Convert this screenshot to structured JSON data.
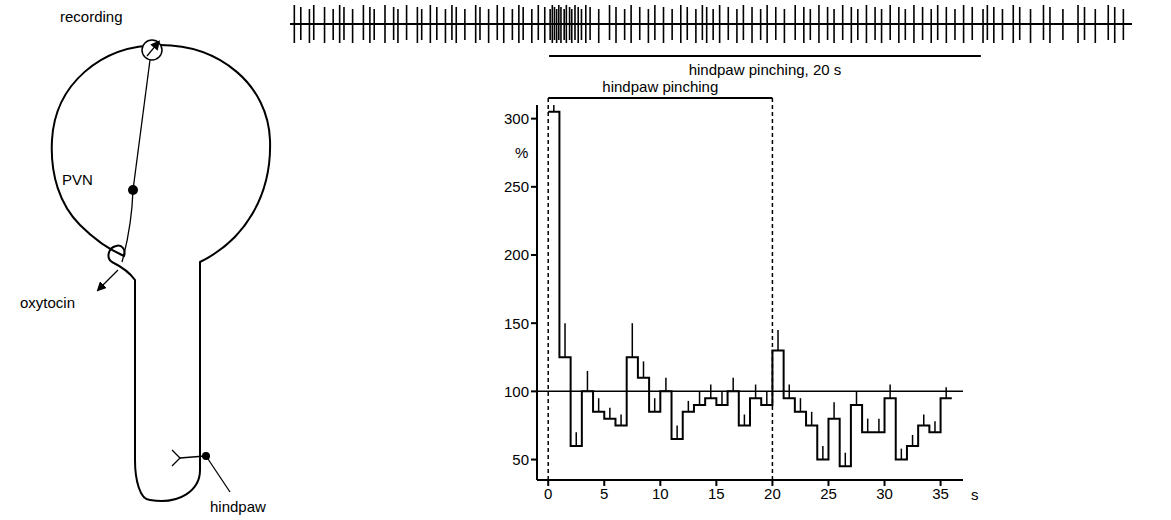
{
  "diagram": {
    "labels": {
      "recording": "recording",
      "pvn": "PVN",
      "oxytocin": "oxytocin",
      "hindpaw": "hindpaw"
    }
  },
  "trace": {
    "type": "spike_train",
    "xlim": [
      -12,
      27
    ],
    "spike_times": [
      -11.8,
      -11.5,
      -11.1,
      -10.9,
      -10.4,
      -10.0,
      -9.7,
      -9.5,
      -9.1,
      -8.6,
      -8.3,
      -8.1,
      -7.6,
      -7.2,
      -7.0,
      -6.6,
      -6.1,
      -5.9,
      -5.5,
      -5.2,
      -4.8,
      -4.5,
      -4.3,
      -3.9,
      -3.4,
      -3.2,
      -2.8,
      -2.4,
      -2.1,
      -1.7,
      -1.4,
      -1.2,
      -0.8,
      -0.5,
      -0.2,
      0.05,
      0.15,
      0.25,
      0.35,
      0.45,
      0.55,
      0.7,
      0.8,
      0.95,
      1.05,
      1.2,
      1.35,
      1.5,
      1.7,
      1.9,
      2.3,
      2.8,
      3.1,
      3.5,
      3.8,
      4.2,
      4.6,
      4.9,
      5.3,
      5.7,
      6.1,
      6.4,
      6.8,
      7.1,
      7.3,
      7.6,
      7.9,
      8.3,
      8.7,
      9.0,
      9.4,
      9.8,
      10.1,
      10.5,
      10.9,
      11.4,
      11.8,
      12.1,
      12.5,
      12.9,
      13.2,
      13.6,
      14.0,
      14.3,
      14.7,
      15.1,
      15.4,
      15.8,
      16.2,
      16.5,
      16.9,
      17.3,
      17.7,
      18.0,
      18.4,
      18.8,
      19.2,
      19.6,
      20.1,
      20.3,
      20.6,
      21.0,
      21.5,
      21.8,
      22.3,
      22.9,
      23.2,
      23.8,
      24.5,
      24.8,
      25.3,
      25.9,
      26.2,
      26.6
    ],
    "stimulus": {
      "label": "hindpaw pinching, 20 s",
      "start": 0,
      "end": 20
    }
  },
  "chart_data": {
    "type": "histogram",
    "bins": [
      0,
      1,
      2,
      3,
      4,
      5,
      6,
      7,
      8,
      9,
      10,
      11,
      12,
      13,
      14,
      15,
      16,
      17,
      18,
      19,
      20,
      21,
      22,
      23,
      24,
      25,
      26,
      27,
      28,
      29,
      30,
      31,
      32,
      33,
      34,
      35,
      36
    ],
    "values": [
      305,
      125,
      60,
      100,
      85,
      80,
      75,
      125,
      110,
      85,
      100,
      65,
      85,
      90,
      95,
      90,
      100,
      75,
      95,
      90,
      130,
      95,
      85,
      75,
      50,
      80,
      45,
      90,
      70,
      70,
      95,
      50,
      60,
      75,
      70,
      95
    ],
    "errors": [
      5,
      25,
      10,
      15,
      10,
      8,
      8,
      25,
      12,
      10,
      10,
      10,
      8,
      10,
      10,
      10,
      10,
      8,
      10,
      10,
      15,
      10,
      10,
      10,
      10,
      12,
      10,
      10,
      10,
      10,
      10,
      8,
      8,
      8,
      8,
      8
    ],
    "y_label": "%",
    "x_label": "s",
    "xlim": [
      -1,
      37
    ],
    "xticks": [
      0,
      5,
      10,
      15,
      20,
      25,
      30,
      35
    ],
    "ylim": [
      35,
      310
    ],
    "yticks": [
      50,
      100,
      150,
      200,
      250,
      300
    ],
    "baseline": 100,
    "stimulus": {
      "label": "hindpaw pinching",
      "start": 0,
      "end": 20
    },
    "color": "#000000",
    "line_style": "step"
  }
}
